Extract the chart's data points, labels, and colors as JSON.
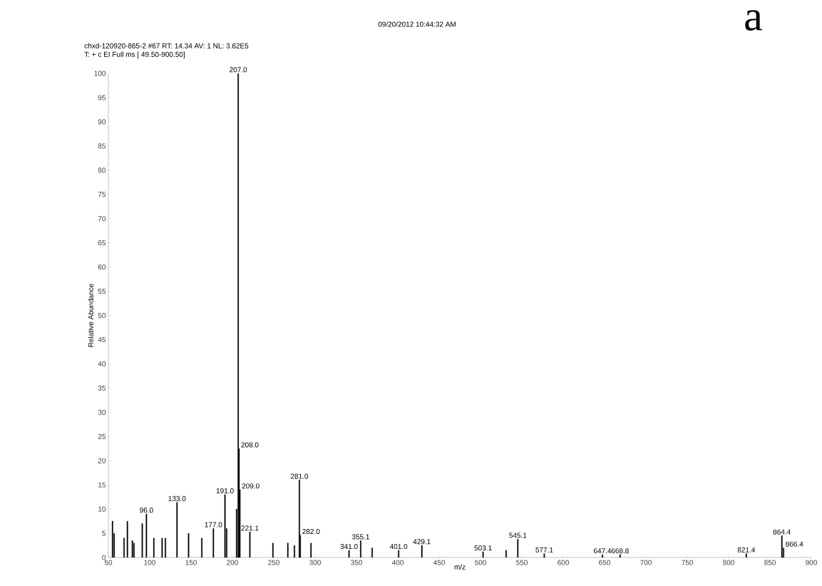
{
  "chart_data": {
    "type": "bar",
    "title": "chxd-120920-865-2 #67  RT: 14.34  AV: 1  NL: 3.62E5",
    "subtitle": "T: + c EI Full ms [ 49.50-900.50]",
    "xlabel": "m/z",
    "ylabel": "Relative Abundance",
    "color": "#000000",
    "x": [
      55,
      57,
      69,
      73,
      79,
      81,
      91,
      96.0,
      105,
      115,
      119,
      133.0,
      147,
      163,
      177.0,
      191.0,
      193,
      205,
      207.0,
      208.0,
      209.0,
      221.1,
      249,
      267,
      275,
      281.0,
      282.0,
      295,
      341.0,
      355.1,
      369,
      401.0,
      429.1,
      503.1,
      531,
      545.1,
      577.1,
      647.4,
      668.8,
      821.4,
      864.4,
      866.4
    ],
    "values": [
      7.5,
      5,
      4,
      7.5,
      3.5,
      3,
      7,
      9,
      4,
      4,
      4,
      11.4,
      5,
      4,
      6,
      13,
      6,
      10,
      100,
      22.5,
      14,
      5.3,
      3,
      3,
      2.5,
      16,
      4.6,
      3,
      1.5,
      3.5,
      2,
      1.5,
      2.5,
      1.2,
      1.5,
      3.8,
      0.8,
      0.6,
      0.6,
      0.8,
      4.5,
      2
    ],
    "xlim": [
      50,
      900
    ],
    "ylim": [
      0,
      100
    ],
    "xticks": [
      50,
      100,
      150,
      200,
      250,
      300,
      350,
      400,
      450,
      500,
      550,
      600,
      650,
      700,
      750,
      800,
      850,
      900
    ],
    "yticks": [
      0,
      5,
      10,
      15,
      20,
      25,
      30,
      35,
      40,
      45,
      50,
      55,
      60,
      65,
      70,
      75,
      80,
      85,
      90,
      95,
      100
    ],
    "annotations": [
      "09/20/2012 10:44:32 AM",
      "a",
      {
        "text": "96.0",
        "x": 96.0,
        "y": 9
      },
      {
        "text": "133.0",
        "x": 133.0,
        "y": 11.4
      },
      {
        "text": "177.0",
        "x": 177.0,
        "y": 6
      },
      {
        "text": "191.0",
        "x": 191.0,
        "y": 13
      },
      {
        "text": "207.0",
        "x": 207.0,
        "y": 100
      },
      {
        "text": "208.0",
        "x": 208.0,
        "y": 22.5
      },
      {
        "text": "209.0",
        "x": 209.0,
        "y": 14
      },
      {
        "text": "221.1",
        "x": 221.1,
        "y": 5.3
      },
      {
        "text": "281.0",
        "x": 281.0,
        "y": 16
      },
      {
        "text": "282.0",
        "x": 282.0,
        "y": 4.6
      },
      {
        "text": "341.0",
        "x": 341.0,
        "y": 1.5
      },
      {
        "text": "355.1",
        "x": 355.1,
        "y": 3.5
      },
      {
        "text": "401.0",
        "x": 401.0,
        "y": 1.5
      },
      {
        "text": "429.1",
        "x": 429.1,
        "y": 2.5
      },
      {
        "text": "503.1",
        "x": 503.1,
        "y": 1.2
      },
      {
        "text": "545.1",
        "x": 545.1,
        "y": 3.8
      },
      {
        "text": "577.1",
        "x": 577.1,
        "y": 0.8
      },
      {
        "text": "647.4",
        "x": 647.4,
        "y": 0.6
      },
      {
        "text": "668.8",
        "x": 668.8,
        "y": 0.6
      },
      {
        "text": "821.4",
        "x": 821.4,
        "y": 0.8
      },
      {
        "text": "864.4",
        "x": 864.4,
        "y": 4.5
      },
      {
        "text": "866.4",
        "x": 866.4,
        "y": 2
      }
    ]
  }
}
